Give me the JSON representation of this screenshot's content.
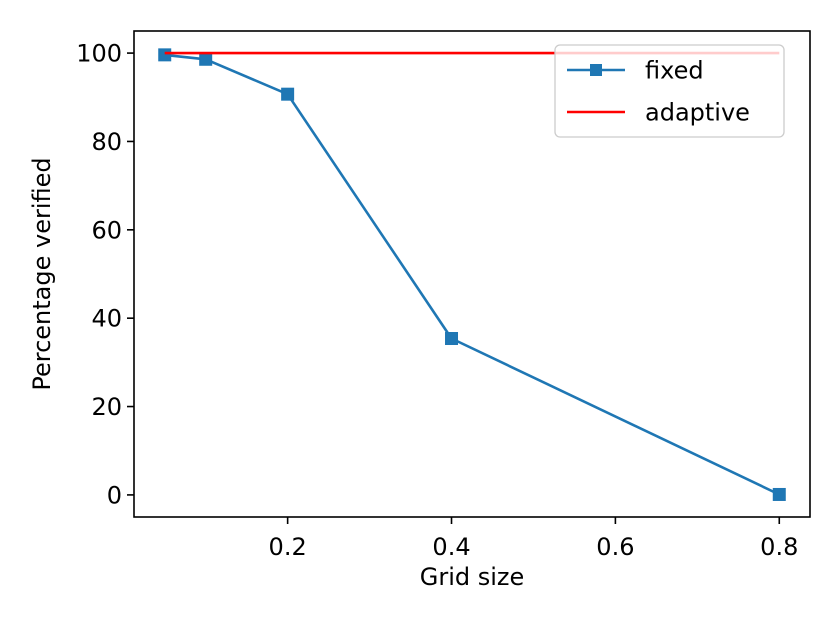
{
  "chart_data": {
    "type": "line",
    "xlabel": "Grid size",
    "ylabel": "Percentage verified",
    "xlim": [
      0.0125,
      0.8375
    ],
    "ylim": [
      -5,
      105
    ],
    "xticks": [
      {
        "value": 0.2,
        "label": "0.2"
      },
      {
        "value": 0.4,
        "label": "0.4"
      },
      {
        "value": 0.6,
        "label": "0.6"
      },
      {
        "value": 0.8,
        "label": "0.8"
      }
    ],
    "yticks": [
      {
        "value": 0,
        "label": "0"
      },
      {
        "value": 20,
        "label": "20"
      },
      {
        "value": 40,
        "label": "40"
      },
      {
        "value": 60,
        "label": "60"
      },
      {
        "value": 80,
        "label": "80"
      },
      {
        "value": 100,
        "label": "100"
      }
    ],
    "grid": false,
    "legend_position": "top-right",
    "series": [
      {
        "name": "fixed",
        "color": "#1f77b4",
        "marker": "square",
        "x": [
          0.05,
          0.1,
          0.2,
          0.4,
          0.8
        ],
        "y": [
          99.6,
          98.6,
          90.7,
          35.4,
          0.1
        ]
      },
      {
        "name": "adaptive",
        "color": "#ff0000",
        "marker": "none",
        "x": [
          0.05,
          0.8
        ],
        "y": [
          100,
          100
        ]
      }
    ]
  }
}
